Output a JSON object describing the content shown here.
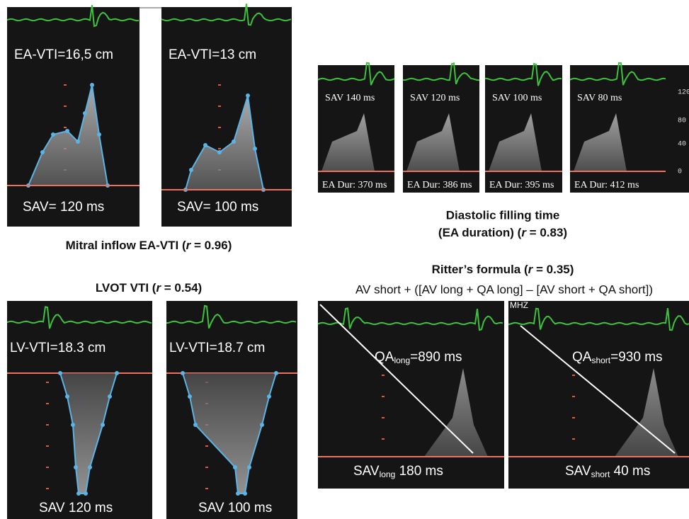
{
  "mitral": {
    "panels": [
      {
        "vti": "EA-VTI=16,5 cm",
        "sav": "SAV= 120 ms"
      },
      {
        "vti": "EA-VTI=13 cm",
        "sav": "SAV= 100 ms"
      }
    ],
    "caption": {
      "prefix": "Mitral inflow EA-VTI (",
      "italic": "r",
      "suffix": " = 0.96)"
    }
  },
  "diastolic": {
    "panels": [
      {
        "sav": "SAV 140 ms",
        "dur": "EA Dur: 370 ms"
      },
      {
        "sav": "SAV 120 ms",
        "dur": "EA Dur: 386 ms"
      },
      {
        "sav": "SAV 100 ms",
        "dur": "EA Dur: 395 ms"
      },
      {
        "sav": "SAV 80 ms",
        "dur": "EA Dur: 412 ms"
      }
    ],
    "axis_labels": [
      "120",
      "80",
      "40",
      "0"
    ],
    "caption": {
      "line1": "Diastolic filling time",
      "prefix": "(EA duration) (",
      "italic": "r",
      "suffix": " = 0.83)"
    }
  },
  "lvot": {
    "title": {
      "prefix": "LVOT VTI (",
      "italic": "r",
      "suffix": " = 0.54)"
    },
    "panels": [
      {
        "vti": "LV-VTI=18.3 cm",
        "sav": "SAV 120 ms"
      },
      {
        "vti": "LV-VTI=18.7 cm",
        "sav": "SAV 100 ms"
      }
    ]
  },
  "ritter": {
    "title": {
      "prefix": "Ritter’s formula (",
      "italic": "r",
      "suffix": " = 0.35)"
    },
    "formula": "AV short + ([AV long + QA long] – [AV short + QA short])",
    "marker": "MHZ",
    "panels": [
      {
        "qa": {
          "main": "QA",
          "sub": "long",
          "rest": "=890 ms"
        },
        "sav": {
          "main": "SAV",
          "sub": "long",
          "rest": " 180 ms"
        }
      },
      {
        "qa": {
          "main": "QA",
          "sub": "short",
          "rest": "=930 ms"
        },
        "sav": {
          "main": "SAV",
          "sub": "short",
          "rest": " 40 ms"
        }
      }
    ]
  }
}
